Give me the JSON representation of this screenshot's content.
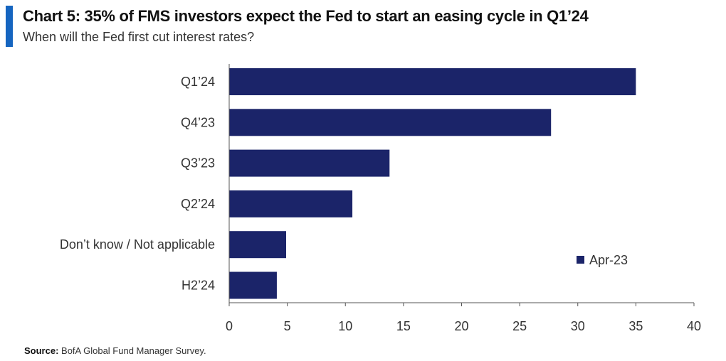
{
  "header": {
    "title": "Chart 5: 35% of FMS investors expect the Fed to start an easing cycle in Q1’24",
    "subtitle": "When will the Fed first cut interest rates?"
  },
  "footer": {
    "source_label": "Source:",
    "source_text": "BofA Global Fund Manager Survey."
  },
  "colors": {
    "accent": "#1565c0",
    "bar": "#1b2469"
  },
  "chart_data": {
    "type": "bar",
    "orientation": "horizontal",
    "categories": [
      "Q1’24",
      "Q4’23",
      "Q3’23",
      "Q2’24",
      "Don’t know / Not applicable",
      "H2’24"
    ],
    "series": [
      {
        "name": "Apr-23",
        "values": [
          35,
          27.7,
          13.8,
          10.6,
          4.9,
          4.1
        ]
      }
    ],
    "xlim": [
      0,
      40
    ],
    "xticks": [
      0,
      5,
      10,
      15,
      20,
      25,
      30,
      35,
      40
    ],
    "grid": false,
    "legend_position": "right"
  }
}
